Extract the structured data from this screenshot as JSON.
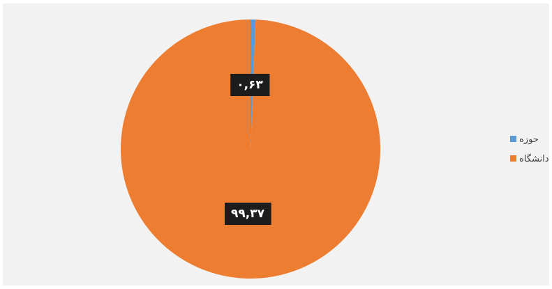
{
  "chart_data": {
    "type": "pie",
    "title": "",
    "categories": [
      "حوزه",
      "دانشگاه"
    ],
    "values": [
      0.63,
      99.37
    ],
    "data_labels": [
      "۰,۶۳",
      "۹۹,۳۷"
    ],
    "colors": [
      "#5b9bd5",
      "#ed7d31"
    ],
    "legend": {
      "position": "right",
      "entries": [
        "حوزه",
        "دانشگاه"
      ]
    },
    "start_angle": "top, clockwise"
  }
}
